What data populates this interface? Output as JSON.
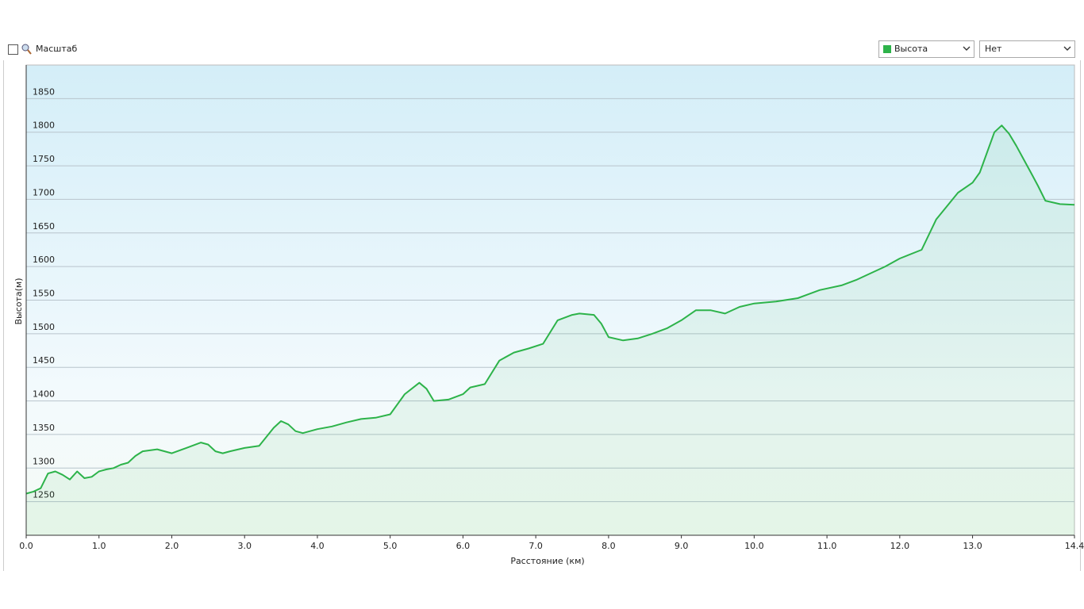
{
  "ui": {
    "zoom_label": "Масштаб",
    "second_select": "Нет"
  },
  "chart_data": {
    "type": "area",
    "xlabel": "Расстояние  (км)",
    "ylabel": "Высота(м)",
    "xlim": [
      0,
      14.4
    ],
    "ylim": [
      1200,
      1900
    ],
    "yticks": [
      1250,
      1300,
      1350,
      1400,
      1450,
      1500,
      1550,
      1600,
      1650,
      1700,
      1750,
      1800,
      1850
    ],
    "xticks": [
      {
        "value": 0,
        "label": "0.0"
      },
      {
        "value": 1,
        "label": "1.0"
      },
      {
        "value": 2,
        "label": "2.0"
      },
      {
        "value": 3,
        "label": "3.0"
      },
      {
        "value": 4,
        "label": "4.0"
      },
      {
        "value": 5,
        "label": "5.0"
      },
      {
        "value": 6,
        "label": "6.0"
      },
      {
        "value": 7,
        "label": "7.0"
      },
      {
        "value": 8,
        "label": "8.0"
      },
      {
        "value": 9,
        "label": "9.0"
      },
      {
        "value": 10,
        "label": "10.0"
      },
      {
        "value": 11,
        "label": "11.0"
      },
      {
        "value": 12,
        "label": "12.0"
      },
      {
        "value": 13,
        "label": "13.0"
      },
      {
        "value": 14.4,
        "label": "14.4"
      }
    ],
    "grid": true,
    "x": [
      0,
      0.1,
      0.2,
      0.3,
      0.4,
      0.5,
      0.6,
      0.7,
      0.8,
      0.9,
      1.0,
      1.1,
      1.2,
      1.3,
      1.4,
      1.5,
      1.6,
      1.8,
      2.0,
      2.2,
      2.4,
      2.5,
      2.6,
      2.7,
      2.8,
      3.0,
      3.2,
      3.4,
      3.5,
      3.6,
      3.7,
      3.8,
      4.0,
      4.2,
      4.4,
      4.6,
      4.8,
      5.0,
      5.2,
      5.4,
      5.5,
      5.6,
      5.8,
      6.0,
      6.1,
      6.3,
      6.5,
      6.7,
      6.9,
      7.1,
      7.3,
      7.5,
      7.6,
      7.8,
      7.9,
      8.0,
      8.2,
      8.4,
      8.6,
      8.8,
      9.0,
      9.2,
      9.4,
      9.6,
      9.8,
      10.0,
      10.3,
      10.6,
      10.9,
      11.2,
      11.4,
      11.6,
      11.8,
      12.0,
      12.3,
      12.5,
      12.8,
      13.0,
      13.1,
      13.3,
      13.4,
      13.5,
      13.6,
      13.7,
      13.8,
      13.9,
      14.0,
      14.2,
      14.4
    ],
    "series": [
      {
        "name": "Высота",
        "color": "#2db34a",
        "values": [
          1262,
          1265,
          1270,
          1292,
          1295,
          1290,
          1283,
          1295,
          1285,
          1287,
          1295,
          1298,
          1300,
          1305,
          1308,
          1318,
          1325,
          1328,
          1322,
          1330,
          1338,
          1335,
          1325,
          1322,
          1325,
          1330,
          1333,
          1360,
          1370,
          1365,
          1355,
          1352,
          1358,
          1362,
          1368,
          1373,
          1375,
          1380,
          1410,
          1427,
          1418,
          1400,
          1402,
          1410,
          1420,
          1425,
          1460,
          1472,
          1478,
          1485,
          1520,
          1528,
          1530,
          1528,
          1515,
          1495,
          1490,
          1493,
          1500,
          1508,
          1520,
          1535,
          1535,
          1530,
          1540,
          1545,
          1548,
          1553,
          1565,
          1572,
          1580,
          1590,
          1600,
          1612,
          1625,
          1670,
          1710,
          1725,
          1740,
          1800,
          1810,
          1798,
          1780,
          1760,
          1740,
          1720,
          1698,
          1693,
          1692
        ]
      }
    ]
  }
}
